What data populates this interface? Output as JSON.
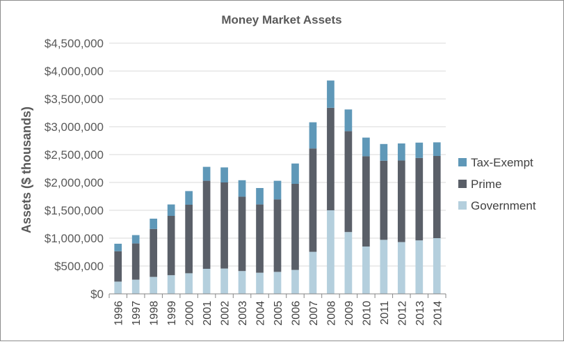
{
  "chart_data": {
    "type": "bar",
    "stacked": true,
    "title": "Money Market Assets",
    "ylabel": "Assets ($ thousands)",
    "xlabel": "",
    "ylim": [
      0,
      4500000
    ],
    "yticks": [
      0,
      500000,
      1000000,
      1500000,
      2000000,
      2500000,
      3000000,
      3500000,
      4000000,
      4500000
    ],
    "ytick_labels": [
      "$0",
      "$500,000",
      "$1,000,000",
      "$1,500,000",
      "$2,000,000",
      "$2,500,000",
      "$3,000,000",
      "$3,500,000",
      "$4,000,000",
      "$4,500,000"
    ],
    "categories": [
      "1996",
      "1997",
      "1998",
      "1999",
      "2000",
      "2001",
      "2002",
      "2003",
      "2004",
      "2005",
      "2006",
      "2007",
      "2008",
      "2009",
      "2010",
      "2011",
      "2012",
      "2013",
      "2014"
    ],
    "legend_position": "right",
    "grid": true,
    "series": [
      {
        "name": "Government",
        "color": "#b4cfdd",
        "values": [
          220000,
          255000,
          305000,
          335000,
          370000,
          450000,
          455000,
          410000,
          380000,
          395000,
          430000,
          755000,
          1500000,
          1110000,
          850000,
          970000,
          930000,
          960000,
          1000000
        ]
      },
      {
        "name": "Prime",
        "color": "#5a5f68",
        "values": [
          545000,
          650000,
          860000,
          1065000,
          1230000,
          1580000,
          1545000,
          1335000,
          1225000,
          1300000,
          1545000,
          1855000,
          1840000,
          1810000,
          1620000,
          1420000,
          1465000,
          1480000,
          1475000
        ]
      },
      {
        "name": "Tax-Exempt",
        "color": "#5f98b8",
        "values": [
          135000,
          150000,
          185000,
          205000,
          245000,
          250000,
          270000,
          295000,
          295000,
          335000,
          365000,
          470000,
          490000,
          390000,
          335000,
          300000,
          305000,
          275000,
          245000
        ]
      }
    ]
  }
}
